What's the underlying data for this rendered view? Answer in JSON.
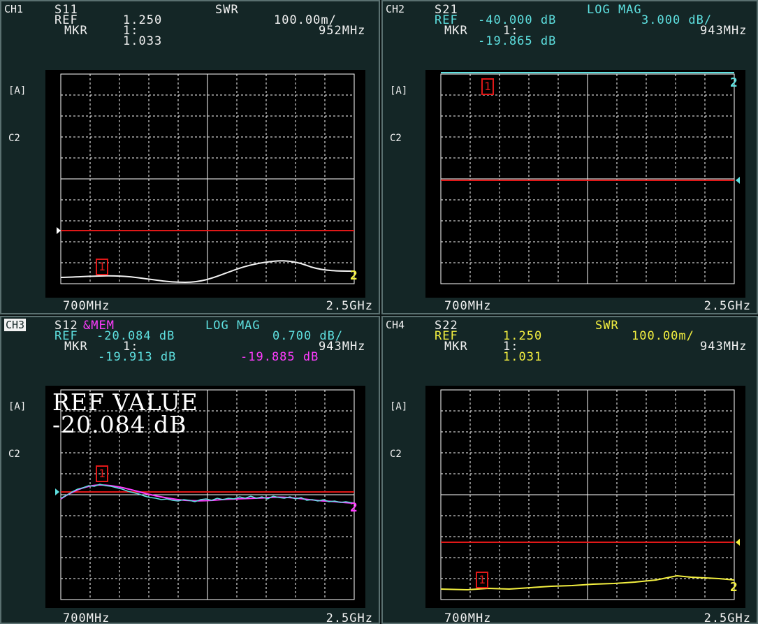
{
  "colors": {
    "white": "#f2f2f2",
    "cyan": "#5ee0e0",
    "yellow": "#f4f040",
    "magenta": "#ff3cff",
    "red": "#e01818",
    "grid": "#ffffff"
  },
  "channels": [
    {
      "tag": "CH1",
      "param": "S11",
      "format": "SWR",
      "ref_label": "REF",
      "ref_value": "1.250",
      "scale": "100.00m/",
      "mkr_label": "MKR",
      "mkr_num": "1:",
      "mkr_freq": "952MHz",
      "mkr_value": "1.033",
      "side_a": "[A]",
      "side_c": "C2",
      "start": "700MHz",
      "stop": "2.5GHz",
      "ref_level": 0.4,
      "trace_color": "white"
    },
    {
      "tag": "CH2",
      "param": "S21",
      "format": "LOG MAG",
      "ref_label": "REF",
      "ref_value": "-40.000 dB",
      "scale": "3.000 dB/",
      "mkr_label": "MKR",
      "mkr_num": "1:",
      "mkr_freq": "943MHz",
      "mkr_value": "-19.865 dB",
      "side_a": "[A]",
      "side_c": "C2",
      "start": "700MHz",
      "stop": "2.5GHz",
      "ref_level": 0.5,
      "trace_color": "cyan"
    },
    {
      "tag": "CH3",
      "param": "S12",
      "param_mem": "&MEM",
      "format": "LOG MAG",
      "ref_label": "REF",
      "ref_value": "-20.084 dB",
      "scale": "0.700 dB/",
      "mkr_label": "MKR",
      "mkr_num": "1:",
      "mkr_freq": "943MHz",
      "mkr_value": "-19.913 dB",
      "mkr_mem_value": "-19.885 dB",
      "side_a": "[A]",
      "side_c": "C2",
      "start": "700MHz",
      "stop": "2.5GHz",
      "ref_overlay_title": "REF VALUE",
      "ref_overlay_value": "-20.084 dB",
      "ref_level": 0.5,
      "trace_color": "cyan"
    },
    {
      "tag": "CH4",
      "param": "S22",
      "format": "SWR",
      "ref_label": "REF",
      "ref_value": "1.250",
      "scale": "100.00m/",
      "mkr_label": "MKR",
      "mkr_num": "1:",
      "mkr_freq": "943MHz",
      "mkr_value": "1.031",
      "side_a": "[A]",
      "side_c": "C2",
      "start": "700MHz",
      "stop": "2.5GHz",
      "ref_level": 0.4,
      "trace_color": "yellow"
    }
  ],
  "markers": {
    "m1": "1",
    "m2": "2"
  }
}
